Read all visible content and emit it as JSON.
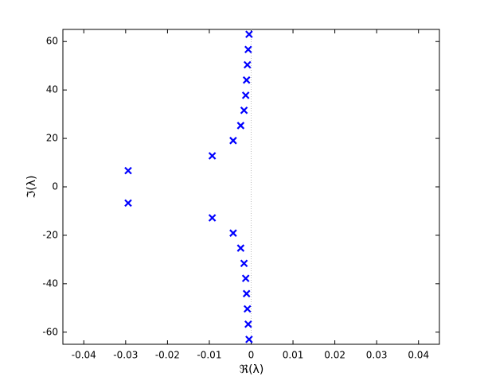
{
  "chart_data": {
    "type": "scatter",
    "xlabel": "ℜ(λ)",
    "ylabel": "ℑ(λ)",
    "x": [
      -0.0294,
      -0.0294,
      -0.0093,
      -0.0093,
      -0.0043,
      -0.0043,
      -0.0025,
      -0.0025,
      -0.0017,
      -0.0017,
      -0.0013,
      -0.0013,
      -0.0011,
      -0.0011,
      -0.0009,
      -0.0009,
      -0.0007,
      -0.0007,
      -0.0005,
      -0.0005
    ],
    "values": [
      6.7,
      -6.7,
      12.8,
      -12.8,
      19.1,
      -19.1,
      25.3,
      -25.3,
      31.6,
      -31.6,
      37.8,
      -37.8,
      44.1,
      -44.1,
      50.4,
      -50.4,
      56.7,
      -56.7,
      63,
      -63
    ],
    "color": "#0000ff",
    "xlim": [
      -0.045,
      0.045
    ],
    "xticks": [
      -0.04,
      -0.03,
      -0.02,
      -0.01,
      0,
      0.01,
      0.02,
      0.03,
      0.04
    ],
    "ylim": [
      -65,
      65
    ],
    "yticks": [
      -60,
      -40,
      -20,
      0,
      20,
      40,
      60
    ],
    "vline": 0
  }
}
